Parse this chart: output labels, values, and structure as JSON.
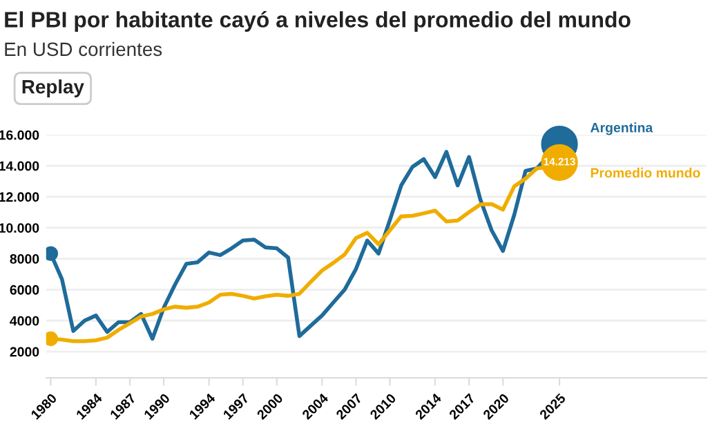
{
  "chart_data": {
    "type": "line",
    "title": "El PBI por habitante cayó a niveles del promedio del mundo",
    "subtitle": "En USD corrientes",
    "annotations": [
      "Replay"
    ],
    "x": [
      1980,
      1981,
      1982,
      1983,
      1984,
      1985,
      1986,
      1987,
      1988,
      1989,
      1990,
      1991,
      1992,
      1993,
      1994,
      1995,
      1996,
      1997,
      1998,
      1999,
      2000,
      2001,
      2002,
      2003,
      2004,
      2005,
      2006,
      2007,
      2008,
      2009,
      2010,
      2011,
      2012,
      2013,
      2014,
      2015,
      2016,
      2017,
      2018,
      2019,
      2020,
      2021,
      2022,
      2023,
      2024,
      2025
    ],
    "series": [
      {
        "name": "Argentina",
        "color": "#1f6b9a",
        "values": [
          8330,
          6670,
          3330,
          4000,
          4330,
          3270,
          3900,
          3900,
          4430,
          2830,
          4830,
          6330,
          7670,
          7770,
          8400,
          8230,
          8670,
          9170,
          9230,
          8730,
          8670,
          8070,
          3000,
          3670,
          4330,
          5170,
          6000,
          7330,
          9170,
          8330,
          10500,
          12730,
          13930,
          14430,
          13270,
          14900,
          12730,
          14570,
          11830,
          9830,
          8500,
          10830,
          13670,
          13830,
          null,
          15400
        ]
      },
      {
        "name": "Promedio mundo",
        "color": "#f0ad00",
        "values": [
          2830,
          2770,
          2670,
          2670,
          2730,
          2900,
          3400,
          3830,
          4270,
          4430,
          4730,
          4900,
          4830,
          4900,
          5170,
          5670,
          5730,
          5600,
          5430,
          5570,
          5670,
          5600,
          5730,
          6500,
          7230,
          7730,
          8270,
          9330,
          9670,
          8930,
          9830,
          10730,
          10770,
          10930,
          11100,
          10400,
          10470,
          11000,
          11500,
          11530,
          11170,
          12670,
          13170,
          13830,
          13900,
          14213
        ],
        "value_labels": [
          null,
          null,
          null,
          null,
          null,
          null,
          null,
          null,
          null,
          null,
          null,
          null,
          null,
          null,
          null,
          null,
          null,
          null,
          null,
          null,
          null,
          null,
          null,
          null,
          null,
          null,
          null,
          null,
          null,
          null,
          null,
          null,
          null,
          null,
          null,
          null,
          null,
          null,
          null,
          null,
          null,
          null,
          null,
          null,
          null,
          "14.213"
        ]
      }
    ],
    "xlim": [
      1979.6,
      2038
    ],
    "ylim": [
      300,
      16000
    ],
    "xticks": [
      1980,
      1984,
      1987,
      1990,
      1994,
      1997,
      2000,
      2004,
      2007,
      2010,
      2014,
      2017,
      2020,
      2025
    ],
    "yticks": [
      2000,
      4000,
      6000,
      8000,
      {
        "value": 10000,
        "label": "10.000"
      },
      {
        "value": 12000,
        "label": "12.000"
      },
      {
        "value": 14000,
        "label": "14.000"
      },
      {
        "value": 16000,
        "label": "16.000"
      }
    ],
    "grid": "y",
    "legend": "right"
  }
}
